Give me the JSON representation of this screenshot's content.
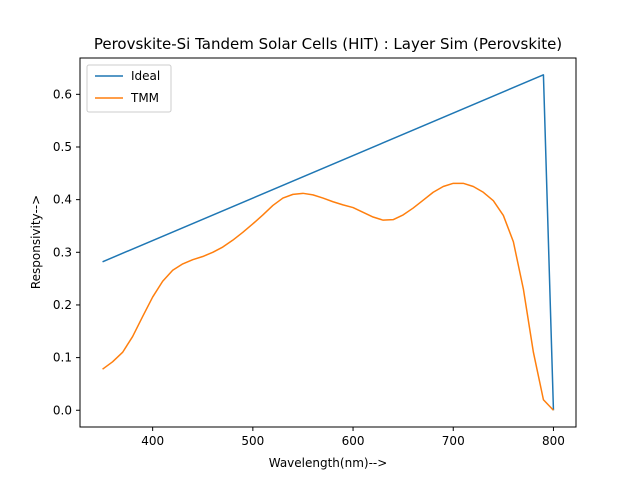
{
  "chart_data": {
    "type": "line",
    "title": "Perovskite-Si Tandem Solar Cells (HIT) : Layer Sim (Perovskite)",
    "xlabel": "Wavelength(nm)-->",
    "ylabel": "Responsivity-->",
    "xlim": [
      327.5,
      822.5
    ],
    "ylim": [
      -0.0318,
      0.669
    ],
    "xticks": [
      400,
      500,
      600,
      700,
      800
    ],
    "yticks": [
      0.0,
      0.1,
      0.2,
      0.3,
      0.4,
      0.5,
      0.6
    ],
    "xtick_labels": [
      "400",
      "500",
      "600",
      "700",
      "800"
    ],
    "ytick_labels": [
      "0.0",
      "0.1",
      "0.2",
      "0.3",
      "0.4",
      "0.5",
      "0.6"
    ],
    "grid": false,
    "legend_position": "top-left",
    "series": [
      {
        "name": "Ideal",
        "color": "#1f77b4",
        "x": [
          350,
          790,
          800
        ],
        "y": [
          0.282,
          0.637,
          0.0
        ]
      },
      {
        "name": "TMM",
        "color": "#ff7f0e",
        "x": [
          350,
          360,
          370,
          380,
          390,
          400,
          410,
          420,
          430,
          440,
          450,
          460,
          470,
          480,
          490,
          500,
          510,
          520,
          530,
          540,
          550,
          560,
          570,
          580,
          590,
          600,
          610,
          620,
          630,
          640,
          650,
          660,
          670,
          680,
          690,
          700,
          710,
          720,
          730,
          740,
          750,
          760,
          770,
          780,
          790,
          800
        ],
        "y": [
          0.078,
          0.092,
          0.11,
          0.14,
          0.178,
          0.215,
          0.245,
          0.266,
          0.278,
          0.286,
          0.292,
          0.3,
          0.31,
          0.323,
          0.338,
          0.354,
          0.371,
          0.389,
          0.403,
          0.41,
          0.412,
          0.409,
          0.403,
          0.396,
          0.39,
          0.385,
          0.376,
          0.367,
          0.361,
          0.362,
          0.371,
          0.384,
          0.399,
          0.414,
          0.425,
          0.431,
          0.431,
          0.425,
          0.414,
          0.398,
          0.37,
          0.32,
          0.23,
          0.11,
          0.02,
          0.0
        ]
      }
    ]
  }
}
